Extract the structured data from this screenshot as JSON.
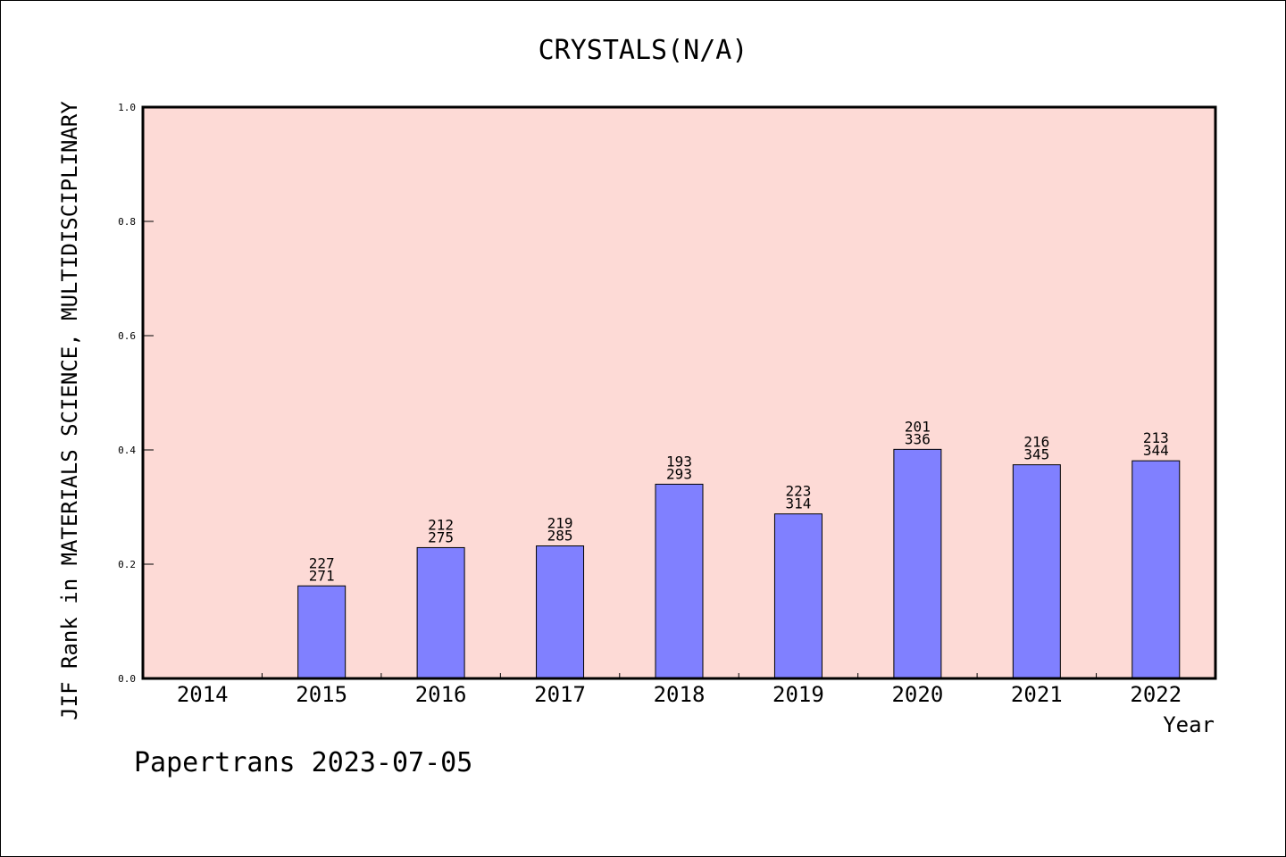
{
  "chart_data": {
    "type": "bar",
    "title": "CRYSTALS(N/A)",
    "xlabel": "Year",
    "ylabel": "JIF Rank in MATERIALS SCIENCE, MULTIDISCIPLINARY",
    "categories": [
      "2014",
      "2015",
      "2016",
      "2017",
      "2018",
      "2019",
      "2020",
      "2021",
      "2022"
    ],
    "values": [
      null,
      0.162,
      0.229,
      0.232,
      0.34,
      0.288,
      0.401,
      0.374,
      0.381
    ],
    "rank": [
      null,
      "227",
      "212",
      "219",
      "193",
      "223",
      "201",
      "216",
      "213"
    ],
    "total": [
      null,
      "271",
      "275",
      "285",
      "293",
      "314",
      "336",
      "345",
      "344"
    ],
    "ylim": [
      0,
      1.0
    ],
    "yticks": [
      "0.0",
      "0.2",
      "0.4",
      "0.6",
      "0.8",
      "1.0"
    ],
    "grid": false,
    "colors": {
      "plot_background": "#fddad6",
      "bar": "#8080ff",
      "axis": "#000000"
    }
  },
  "footer": "Papertrans 2023-07-05"
}
